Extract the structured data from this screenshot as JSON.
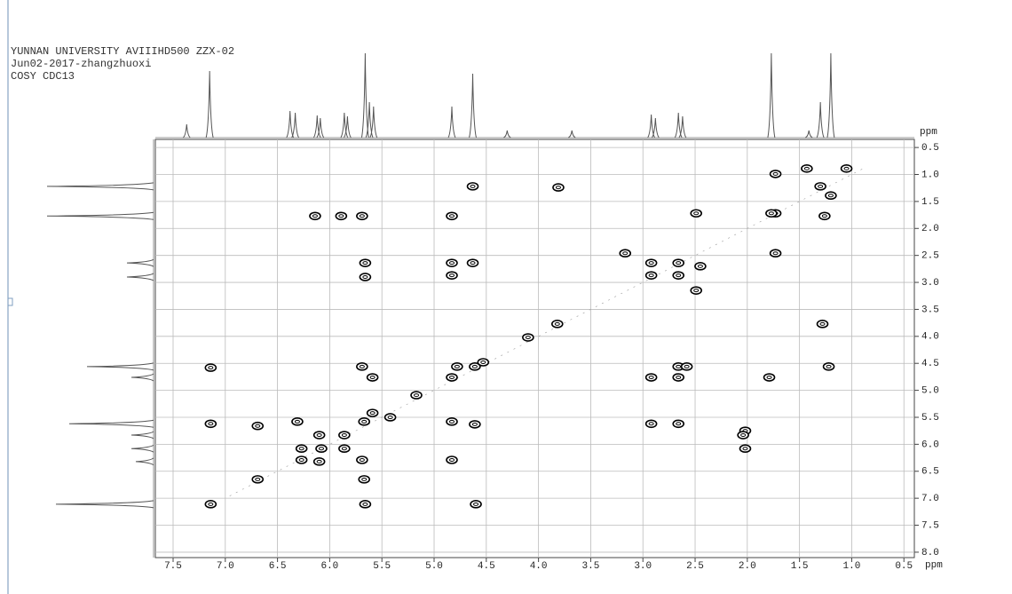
{
  "chart_data": {
    "type": "contour",
    "header": [
      "YUNNAN UNIVERSITY AVIIIHD500 ZZX-02",
      "Jun02-2017-zhangzhuoxi",
      "COSY CDC13"
    ],
    "x_label": "ppm",
    "y_label": "ppm",
    "color": "#000000",
    "grid": true,
    "xlim": [
      7.67,
      0.4
    ],
    "ylim": [
      0.35,
      8.1
    ],
    "xticks": [
      7.5,
      {
        "value": 7,
        "label": "7.0"
      },
      6.5,
      {
        "value": 6,
        "label": "6.0"
      },
      5.5,
      {
        "value": 5,
        "label": "5.0"
      },
      4.5,
      {
        "value": 4,
        "label": "4.0"
      },
      3.5,
      {
        "value": 3,
        "label": "3.0"
      },
      2.5,
      {
        "value": 2,
        "label": "2.0"
      },
      1.5,
      {
        "value": 1,
        "label": "1.0"
      },
      0.5
    ],
    "yticks": [
      0.5,
      {
        "value": 1,
        "label": "1.0"
      },
      1.5,
      {
        "value": 2,
        "label": "2.0"
      },
      2.5,
      {
        "value": 3,
        "label": "3.0"
      },
      3.5,
      {
        "value": 4,
        "label": "4.0"
      },
      4.5,
      {
        "value": 5,
        "label": "5.0"
      },
      5.5,
      {
        "value": 6,
        "label": "6.0"
      },
      6.5,
      {
        "value": 7,
        "label": "7.0"
      },
      7.5,
      {
        "value": 8,
        "label": "8.0"
      }
    ],
    "peaks": {
      "x": [
        7.14,
        7.14,
        7.14,
        6.69,
        6.69,
        6.31,
        6.27,
        6.27,
        6.1,
        6.08,
        6.1,
        5.86,
        5.86,
        5.67,
        5.59,
        5.69,
        5.69,
        5.59,
        5.67,
        5.66,
        5.66,
        5.66,
        6.14,
        5.89,
        5.69,
        4.83,
        4.83,
        4.83,
        4.63,
        4.63,
        4.83,
        4.78,
        4.61,
        4.83,
        4.61,
        4.6,
        4.83,
        3.81,
        3.82,
        2.92,
        2.92,
        2.66,
        2.66,
        2.45,
        3.17,
        2.49,
        2.49,
        2.92,
        2.66,
        2.66,
        2.58,
        2.92,
        2.66,
        1.73,
        1.73,
        1.73,
        1.79,
        2.02,
        2.04,
        2.02,
        1.26,
        1.28,
        1.22,
        1.43,
        1.2,
        1.05,
        1.3,
        1.77,
        4.1,
        4.53,
        5.17,
        5.42
      ],
      "y": [
        4.58,
        5.62,
        7.11,
        5.66,
        6.65,
        5.58,
        6.08,
        6.29,
        5.83,
        6.08,
        6.32,
        6.08,
        5.83,
        5.58,
        5.42,
        6.29,
        4.56,
        4.76,
        6.65,
        7.11,
        2.64,
        2.9,
        1.77,
        1.77,
        1.77,
        1.77,
        2.64,
        2.87,
        2.64,
        1.22,
        4.76,
        4.56,
        4.56,
        5.58,
        5.63,
        7.11,
        6.29,
        1.24,
        3.77,
        2.64,
        2.87,
        2.64,
        2.87,
        2.7,
        2.46,
        3.15,
        1.72,
        4.76,
        4.56,
        4.76,
        4.56,
        5.62,
        5.62,
        0.99,
        1.72,
        2.46,
        4.76,
        5.75,
        5.83,
        6.08,
        1.77,
        3.77,
        4.56,
        0.89,
        1.39,
        0.89,
        1.22,
        1.72,
        4.02,
        4.48,
        5.09,
        5.5
      ]
    },
    "projection_top": {
      "x": [
        7.37,
        7.15,
        6.38,
        6.33,
        6.12,
        6.09,
        5.86,
        5.83,
        5.66,
        5.62,
        5.58,
        4.83,
        4.63,
        4.3,
        3.68,
        2.92,
        2.88,
        2.66,
        2.62,
        1.77,
        1.41,
        1.3,
        1.2
      ],
      "values": [
        15,
        75,
        30,
        28,
        25,
        22,
        28,
        24,
        95,
        40,
        35,
        35,
        72,
        8,
        8,
        26,
        22,
        28,
        24,
        95,
        8,
        40,
        95
      ],
      "lim": [
        0,
        100
      ]
    },
    "projection_left": {
      "y": [
        1.22,
        1.77,
        2.64,
        2.9,
        4.56,
        4.76,
        5.62,
        5.83,
        6.08,
        6.32,
        7.11
      ],
      "values": [
        96,
        96,
        24,
        24,
        60,
        20,
        76,
        20,
        20,
        16,
        88
      ],
      "lim": [
        0,
        100
      ]
    }
  }
}
